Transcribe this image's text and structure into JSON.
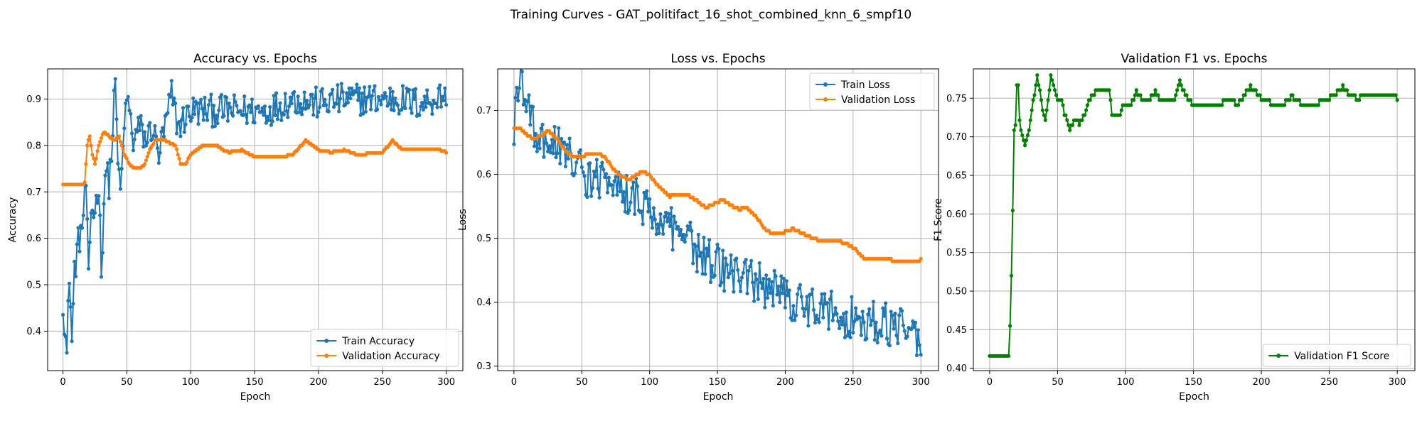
{
  "figure": {
    "suptitle": "Training Curves - GAT_politifact_16_shot_combined_knn_6_smpf10"
  },
  "colors": {
    "blue": "#1f77b4",
    "orange": "#ff7f0e",
    "green": "#008000",
    "grid": "#b0b0b0"
  },
  "chart_data": [
    {
      "type": "line",
      "title": "Accuracy vs. Epochs",
      "xlabel": "Epoch",
      "ylabel": "Accuracy",
      "xlim": [
        -12,
        313
      ],
      "ylim": [
        0.315,
        0.965
      ],
      "xticks": [
        0,
        50,
        100,
        150,
        200,
        250,
        300
      ],
      "yticks": [
        0.4,
        0.5,
        0.6,
        0.7,
        0.8,
        0.9
      ],
      "grid": true,
      "legend": "lower-right",
      "series": [
        {
          "name": "Train Accuracy",
          "color": "#1f77b4",
          "style": "noisy",
          "keypoints": [
            [
              0,
              0.469
            ],
            [
              3,
              0.344
            ],
            [
              5,
              0.53
            ],
            [
              7,
              0.375
            ],
            [
              9,
              0.53
            ],
            [
              12,
              0.59
            ],
            [
              15,
              0.625
            ],
            [
              18,
              0.72
            ],
            [
              20,
              0.5
            ],
            [
              22,
              0.66
            ],
            [
              25,
              0.66
            ],
            [
              28,
              0.72
            ],
            [
              30,
              0.53
            ],
            [
              33,
              0.75
            ],
            [
              36,
              0.72
            ],
            [
              38,
              0.78
            ],
            [
              41,
              0.94
            ],
            [
              43,
              0.75
            ],
            [
              46,
              0.72
            ],
            [
              48,
              0.84
            ],
            [
              50,
              0.91
            ],
            [
              55,
              0.81
            ],
            [
              60,
              0.84
            ],
            [
              65,
              0.81
            ],
            [
              70,
              0.84
            ],
            [
              75,
              0.78
            ],
            [
              80,
              0.84
            ],
            [
              85,
              0.91
            ],
            [
              90,
              0.84
            ],
            [
              100,
              0.875
            ],
            [
              120,
              0.875
            ],
            [
              140,
              0.875
            ],
            [
              160,
              0.875
            ],
            [
              180,
              0.9
            ],
            [
              200,
              0.89
            ],
            [
              220,
              0.9
            ],
            [
              240,
              0.9
            ],
            [
              260,
              0.9
            ],
            [
              280,
              0.89
            ],
            [
              300,
              0.91
            ]
          ]
        },
        {
          "name": "Validation Accuracy",
          "color": "#ff7f0e",
          "style": "smooth",
          "keypoints": [
            [
              0,
              0.715
            ],
            [
              5,
              0.715
            ],
            [
              10,
              0.715
            ],
            [
              15,
              0.715
            ],
            [
              17,
              0.72
            ],
            [
              19,
              0.8
            ],
            [
              21,
              0.82
            ],
            [
              23,
              0.78
            ],
            [
              25,
              0.76
            ],
            [
              28,
              0.8
            ],
            [
              32,
              0.83
            ],
            [
              36,
              0.82
            ],
            [
              40,
              0.81
            ],
            [
              44,
              0.82
            ],
            [
              48,
              0.78
            ],
            [
              52,
              0.76
            ],
            [
              56,
              0.75
            ],
            [
              60,
              0.75
            ],
            [
              64,
              0.76
            ],
            [
              68,
              0.79
            ],
            [
              72,
              0.81
            ],
            [
              80,
              0.81
            ],
            [
              88,
              0.8
            ],
            [
              92,
              0.76
            ],
            [
              96,
              0.76
            ],
            [
              100,
              0.78
            ],
            [
              110,
              0.8
            ],
            [
              120,
              0.8
            ],
            [
              125,
              0.79
            ],
            [
              130,
              0.785
            ],
            [
              140,
              0.79
            ],
            [
              150,
              0.775
            ],
            [
              170,
              0.775
            ],
            [
              180,
              0.78
            ],
            [
              190,
              0.81
            ],
            [
              200,
              0.79
            ],
            [
              210,
              0.785
            ],
            [
              220,
              0.79
            ],
            [
              230,
              0.78
            ],
            [
              250,
              0.785
            ],
            [
              258,
              0.81
            ],
            [
              266,
              0.79
            ],
            [
              280,
              0.79
            ],
            [
              295,
              0.79
            ],
            [
              300,
              0.785
            ]
          ]
        }
      ]
    },
    {
      "type": "line",
      "title": "Loss vs. Epochs",
      "xlabel": "Epoch",
      "ylabel": "Loss",
      "xlim": [
        -12,
        313
      ],
      "ylim": [
        0.293,
        0.765
      ],
      "xticks": [
        0,
        50,
        100,
        150,
        200,
        250,
        300
      ],
      "yticks": [
        0.3,
        0.4,
        0.5,
        0.6,
        0.7
      ],
      "grid": true,
      "legend": "upper-right",
      "series": [
        {
          "name": "Train Loss",
          "color": "#1f77b4",
          "style": "noisy",
          "keypoints": [
            [
              0,
              0.68
            ],
            [
              2,
              0.72
            ],
            [
              4,
              0.745
            ],
            [
              6,
              0.75
            ],
            [
              8,
              0.73
            ],
            [
              12,
              0.7
            ],
            [
              16,
              0.67
            ],
            [
              20,
              0.655
            ],
            [
              25,
              0.65
            ],
            [
              30,
              0.64
            ],
            [
              35,
              0.64
            ],
            [
              40,
              0.625
            ],
            [
              45,
              0.62
            ],
            [
              50,
              0.6
            ],
            [
              60,
              0.59
            ],
            [
              70,
              0.585
            ],
            [
              80,
              0.575
            ],
            [
              90,
              0.56
            ],
            [
              100,
              0.545
            ],
            [
              110,
              0.525
            ],
            [
              120,
              0.505
            ],
            [
              130,
              0.49
            ],
            [
              140,
              0.47
            ],
            [
              150,
              0.46
            ],
            [
              160,
              0.445
            ],
            [
              170,
              0.44
            ],
            [
              180,
              0.43
            ],
            [
              190,
              0.42
            ],
            [
              200,
              0.41
            ],
            [
              210,
              0.4
            ],
            [
              220,
              0.395
            ],
            [
              230,
              0.39
            ],
            [
              240,
              0.38
            ],
            [
              250,
              0.375
            ],
            [
              260,
              0.37
            ],
            [
              270,
              0.37
            ],
            [
              280,
              0.36
            ],
            [
              290,
              0.36
            ],
            [
              295,
              0.35
            ],
            [
              300,
              0.32
            ]
          ]
        },
        {
          "name": "Validation Loss",
          "color": "#ff7f0e",
          "style": "smooth",
          "keypoints": [
            [
              0,
              0.673
            ],
            [
              5,
              0.67
            ],
            [
              10,
              0.66
            ],
            [
              15,
              0.655
            ],
            [
              20,
              0.66
            ],
            [
              25,
              0.668
            ],
            [
              30,
              0.66
            ],
            [
              35,
              0.645
            ],
            [
              40,
              0.632
            ],
            [
              45,
              0.628
            ],
            [
              50,
              0.628
            ],
            [
              55,
              0.632
            ],
            [
              62,
              0.633
            ],
            [
              68,
              0.625
            ],
            [
              72,
              0.612
            ],
            [
              78,
              0.598
            ],
            [
              85,
              0.592
            ],
            [
              90,
              0.598
            ],
            [
              95,
              0.605
            ],
            [
              100,
              0.598
            ],
            [
              105,
              0.585
            ],
            [
              110,
              0.575
            ],
            [
              115,
              0.566
            ],
            [
              122,
              0.57
            ],
            [
              128,
              0.568
            ],
            [
              135,
              0.558
            ],
            [
              142,
              0.548
            ],
            [
              148,
              0.555
            ],
            [
              154,
              0.56
            ],
            [
              160,
              0.552
            ],
            [
              166,
              0.545
            ],
            [
              172,
              0.548
            ],
            [
              178,
              0.535
            ],
            [
              185,
              0.515
            ],
            [
              190,
              0.508
            ],
            [
              200,
              0.51
            ],
            [
              206,
              0.515
            ],
            [
              212,
              0.508
            ],
            [
              220,
              0.5
            ],
            [
              226,
              0.496
            ],
            [
              232,
              0.494
            ],
            [
              240,
              0.495
            ],
            [
              246,
              0.49
            ],
            [
              252,
              0.482
            ],
            [
              258,
              0.468
            ],
            [
              262,
              0.466
            ],
            [
              268,
              0.47
            ],
            [
              274,
              0.47
            ],
            [
              280,
              0.465
            ],
            [
              286,
              0.462
            ],
            [
              292,
              0.464
            ],
            [
              300,
              0.466
            ]
          ]
        }
      ]
    },
    {
      "type": "line",
      "title": "Validation F1 vs. Epochs",
      "xlabel": "Epoch",
      "ylabel": "F1 Score",
      "xlim": [
        -12,
        313
      ],
      "ylim": [
        0.397,
        0.788
      ],
      "xticks": [
        0,
        50,
        100,
        150,
        200,
        250,
        300
      ],
      "yticks": [
        0.4,
        0.45,
        0.5,
        0.55,
        0.6,
        0.65,
        0.7,
        0.75
      ],
      "grid": true,
      "legend": "lower-right",
      "series": [
        {
          "name": "Validation F1 Score",
          "color": "#008000",
          "style": "step",
          "keypoints": [
            [
              0,
              0.418
            ],
            [
              5,
              0.418
            ],
            [
              10,
              0.418
            ],
            [
              14,
              0.418
            ],
            [
              15,
              0.453
            ],
            [
              16,
              0.518
            ],
            [
              17,
              0.603
            ],
            [
              18,
              0.71
            ],
            [
              19,
              0.717
            ],
            [
              20,
              0.765
            ],
            [
              21,
              0.767
            ],
            [
              22,
              0.72
            ],
            [
              24,
              0.7
            ],
            [
              26,
              0.69
            ],
            [
              28,
              0.7
            ],
            [
              30,
              0.72
            ],
            [
              32,
              0.745
            ],
            [
              34,
              0.768
            ],
            [
              35,
              0.777
            ],
            [
              37,
              0.76
            ],
            [
              39,
              0.735
            ],
            [
              41,
              0.72
            ],
            [
              43,
              0.745
            ],
            [
              45,
              0.777
            ],
            [
              47,
              0.768
            ],
            [
              49,
              0.755
            ],
            [
              51,
              0.745
            ],
            [
              53,
              0.75
            ],
            [
              55,
              0.73
            ],
            [
              57,
              0.72
            ],
            [
              59,
              0.71
            ],
            [
              62,
              0.72
            ],
            [
              66,
              0.718
            ],
            [
              70,
              0.73
            ],
            [
              74,
              0.75
            ],
            [
              78,
              0.758
            ],
            [
              84,
              0.758
            ],
            [
              88,
              0.76
            ],
            [
              90,
              0.73
            ],
            [
              92,
              0.727
            ],
            [
              95,
              0.725
            ],
            [
              98,
              0.74
            ],
            [
              104,
              0.74
            ],
            [
              108,
              0.76
            ],
            [
              112,
              0.748
            ],
            [
              118,
              0.748
            ],
            [
              122,
              0.76
            ],
            [
              126,
              0.745
            ],
            [
              132,
              0.745
            ],
            [
              136,
              0.748
            ],
            [
              140,
              0.772
            ],
            [
              144,
              0.755
            ],
            [
              150,
              0.742
            ],
            [
              160,
              0.742
            ],
            [
              170,
              0.742
            ],
            [
              176,
              0.75
            ],
            [
              182,
              0.742
            ],
            [
              188,
              0.755
            ],
            [
              192,
              0.765
            ],
            [
              196,
              0.758
            ],
            [
              200,
              0.75
            ],
            [
              206,
              0.745
            ],
            [
              212,
              0.74
            ],
            [
              218,
              0.745
            ],
            [
              222,
              0.752
            ],
            [
              228,
              0.745
            ],
            [
              232,
              0.74
            ],
            [
              238,
              0.742
            ],
            [
              244,
              0.745
            ],
            [
              250,
              0.75
            ],
            [
              254,
              0.755
            ],
            [
              260,
              0.765
            ],
            [
              264,
              0.757
            ],
            [
              270,
              0.75
            ],
            [
              276,
              0.752
            ],
            [
              284,
              0.752
            ],
            [
              292,
              0.757
            ],
            [
              296,
              0.757
            ],
            [
              300,
              0.75
            ]
          ]
        }
      ]
    }
  ]
}
